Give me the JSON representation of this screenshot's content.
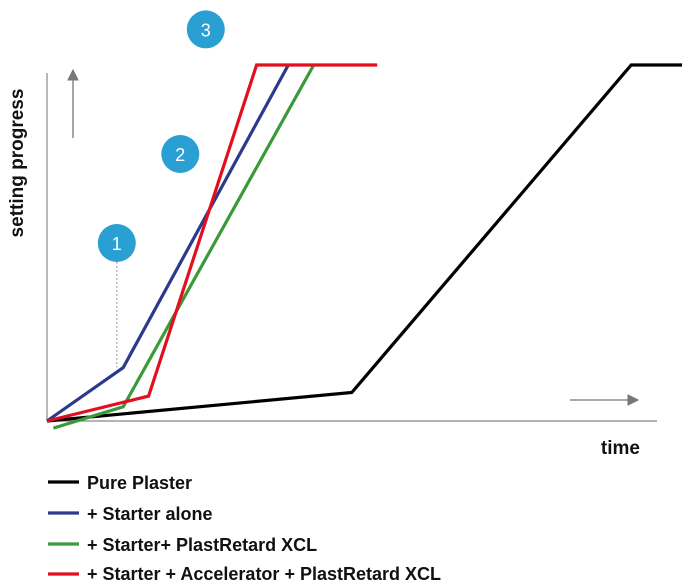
{
  "chart_data": {
    "type": "line",
    "title": "",
    "xlabel": "time",
    "ylabel": "setting progress",
    "axis_ticks": false,
    "grid": false,
    "legend_position": "bottom-left",
    "xlim": [
      0,
      100
    ],
    "ylim": [
      0,
      100
    ],
    "series": [
      {
        "name": "Pure Plaster",
        "color": "#000000",
        "points": [
          [
            0,
            0
          ],
          [
            48,
            8
          ],
          [
            92,
            100
          ],
          [
            100,
            100
          ]
        ]
      },
      {
        "name": "+ Starter alone",
        "color": "#2b3a8c",
        "points": [
          [
            0,
            0
          ],
          [
            12,
            15
          ],
          [
            38,
            100
          ]
        ]
      },
      {
        "name": "+ Starter+ PlastRetard XCL",
        "color": "#3a9a3a",
        "points": [
          [
            1,
            -2
          ],
          [
            12,
            4
          ],
          [
            42,
            100
          ]
        ]
      },
      {
        "name": "+ Starter + Accelerator + PlastRetard XCL",
        "color": "#e0101e",
        "points": [
          [
            0,
            0
          ],
          [
            16,
            7
          ],
          [
            33,
            100
          ],
          [
            52,
            100
          ]
        ]
      }
    ],
    "annotations": [
      {
        "label": "1",
        "x": 11,
        "y": 50,
        "leader_to_y": 15
      },
      {
        "label": "2",
        "x": 21,
        "y": 75
      },
      {
        "label": "3",
        "x": 25,
        "y": 110
      }
    ]
  },
  "colors": {
    "axis": "#888888",
    "marker_fill": "#2a9fd4",
    "leader": "#aaaaaa"
  }
}
